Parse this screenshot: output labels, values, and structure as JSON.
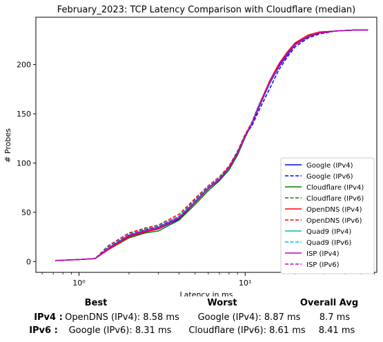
{
  "chart_data": {
    "type": "line",
    "title": "February_2023: TCP Latency Comparison with Cloudflare (median)",
    "xlabel": "Latency in ms",
    "ylabel": "# Probes",
    "xscale": "log",
    "xlim": [
      0.55,
      62
    ],
    "ylim": [
      -11,
      248
    ],
    "xticks": [
      {
        "value": 1,
        "label": "10⁰"
      },
      {
        "value": 10,
        "label": "10¹"
      }
    ],
    "yticks": [
      0,
      50,
      100,
      150,
      200
    ],
    "grid": false,
    "legend_position": "lower right",
    "x": [
      0.72,
      1.0,
      1.25,
      1.5,
      2.0,
      2.5,
      3.0,
      4.0,
      5.0,
      6.0,
      7.0,
      8.0,
      9.0,
      10.0,
      11.0,
      12.0,
      14.0,
      16.0,
      18.0,
      20.0,
      24.0,
      28.0,
      35.0,
      45.0,
      55.0
    ],
    "series": [
      {
        "name": "Google (IPv4)",
        "color": "#0000ff",
        "dash": "solid",
        "values": [
          1,
          2,
          3,
          13,
          26,
          30,
          33,
          43,
          60,
          74,
          83,
          95,
          110,
          128,
          140,
          155,
          180,
          198,
          210,
          220,
          228,
          232,
          234,
          235,
          235
        ]
      },
      {
        "name": "Google (IPv6)",
        "color": "#0000ff",
        "dash": "dashed",
        "values": [
          1,
          2,
          3,
          16,
          29,
          33,
          36,
          46,
          62,
          76,
          85,
          96,
          112,
          128,
          138,
          152,
          175,
          195,
          208,
          218,
          227,
          231,
          234,
          235,
          235
        ]
      },
      {
        "name": "Cloudflare (IPv4)",
        "color": "#008000",
        "dash": "solid",
        "values": [
          1,
          2,
          3,
          12,
          24,
          29,
          31,
          42,
          58,
          72,
          82,
          93,
          108,
          126,
          140,
          156,
          182,
          200,
          212,
          221,
          229,
          232,
          234,
          235,
          235
        ]
      },
      {
        "name": "Cloudflare (IPv6)",
        "color": "#008000",
        "dash": "dashed",
        "values": [
          1,
          2,
          3,
          15,
          28,
          33,
          35,
          46,
          63,
          76,
          85,
          97,
          112,
          129,
          141,
          156,
          181,
          200,
          212,
          221,
          229,
          233,
          234,
          235,
          235
        ]
      },
      {
        "name": "OpenDNS (IPv4)",
        "color": "#ff0000",
        "dash": "solid",
        "values": [
          1,
          2,
          3,
          12,
          25,
          30,
          33,
          44,
          60,
          74,
          84,
          95,
          110,
          128,
          141,
          157,
          183,
          201,
          213,
          222,
          230,
          233,
          234,
          235,
          235
        ]
      },
      {
        "name": "OpenDNS (IPv6)",
        "color": "#ff0000",
        "dash": "dashed",
        "values": [
          1,
          2,
          3,
          16,
          29,
          34,
          37,
          48,
          64,
          77,
          86,
          97,
          112,
          129,
          142,
          157,
          182,
          201,
          213,
          222,
          230,
          233,
          234,
          235,
          235
        ]
      },
      {
        "name": "Quad9 (IPv4)",
        "color": "#00bfbf",
        "dash": "solid",
        "values": [
          1,
          2,
          3,
          14,
          27,
          32,
          35,
          45,
          61,
          75,
          84,
          96,
          111,
          128,
          141,
          156,
          180,
          199,
          211,
          220,
          228,
          232,
          234,
          235,
          235
        ]
      },
      {
        "name": "Quad9 (IPv6)",
        "color": "#00bfbf",
        "dash": "dashed",
        "values": [
          1,
          2,
          3,
          15,
          28,
          33,
          36,
          46,
          62,
          76,
          85,
          96,
          111,
          128,
          142,
          158,
          182,
          200,
          212,
          221,
          229,
          232,
          234,
          235,
          235
        ]
      },
      {
        "name": "ISP (IPv4)",
        "color": "#bf00bf",
        "dash": "solid",
        "values": [
          1,
          2,
          3,
          13,
          26,
          31,
          34,
          44,
          60,
          74,
          83,
          95,
          110,
          127,
          140,
          156,
          181,
          199,
          211,
          220,
          228,
          232,
          234,
          235,
          235
        ]
      },
      {
        "name": "ISP (IPv6)",
        "color": "#bf00bf",
        "dash": "dashed",
        "values": [
          1,
          2,
          3,
          14,
          27,
          32,
          35,
          45,
          61,
          75,
          84,
          96,
          111,
          128,
          141,
          157,
          182,
          200,
          212,
          221,
          229,
          232,
          234,
          235,
          235
        ]
      }
    ]
  },
  "summary": {
    "headers": {
      "best": "Best",
      "worst": "Worst",
      "avg": "Overall Avg"
    },
    "rows": [
      {
        "label": "IPv4 :",
        "best": "OpenDNS (IPv4): 8.58 ms",
        "worst": "Google (IPv4): 8.87 ms",
        "avg": "8.7 ms"
      },
      {
        "label": "IPv6 :",
        "best": "Google (IPv6): 8.31 ms",
        "worst": "Cloudflare (IPv6): 8.61 ms",
        "avg": "8.41 ms"
      }
    ]
  }
}
